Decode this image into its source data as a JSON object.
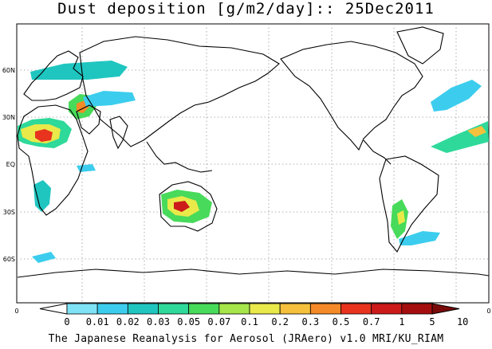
{
  "title": "Dust deposition [g/m2/day]:: 25Dec2011",
  "footer": "The Japanese Reanalysis for Aerosol (JRAero) v1.0 MRI/KU_RIAM",
  "lat_labels": [
    "60N",
    "30N",
    "EQ",
    "30S",
    "60S"
  ],
  "axis_zero_left": "0",
  "axis_zero_right": "0",
  "colorbar": {
    "labels": [
      "0",
      "0.01",
      "0.02",
      "0.03",
      "0.05",
      "0.07",
      "0.1",
      "0.2",
      "0.3",
      "0.5",
      "0.7",
      "1",
      "5",
      "10"
    ],
    "colors": [
      "#ffffff",
      "#7fe3f5",
      "#3ccdee",
      "#1fc6c0",
      "#2ed99a",
      "#48da5a",
      "#a6e64a",
      "#e9e94a",
      "#f5c13c",
      "#f58a28",
      "#e8331f",
      "#cc1a1a",
      "#a50e0e",
      "#7a0a0a"
    ]
  }
}
